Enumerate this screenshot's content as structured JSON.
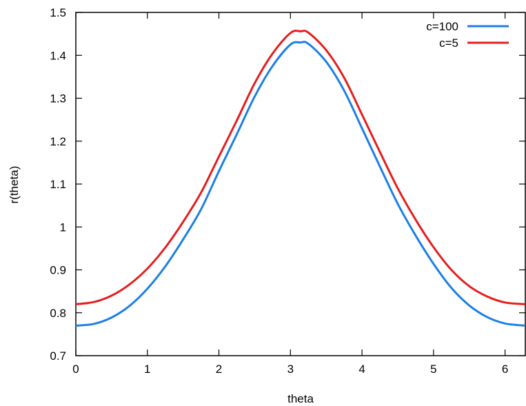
{
  "chart_data": {
    "type": "line",
    "xlabel": "theta",
    "ylabel": "r(theta)",
    "xlim": [
      0,
      6.2832
    ],
    "ylim": [
      0.7,
      1.5
    ],
    "x_ticks": [
      0,
      1,
      2,
      3,
      4,
      5,
      6
    ],
    "x_tick_labels": [
      "0",
      "1",
      "2",
      "3",
      "4",
      "5",
      "6"
    ],
    "y_ticks": [
      0.7,
      0.8,
      0.9,
      1.0,
      1.1,
      1.2,
      1.3,
      1.4,
      1.5
    ],
    "y_tick_labels": [
      "0.7",
      "0.8",
      "0.9",
      "1",
      "1.1",
      "1.2",
      "1.3",
      "1.4",
      "1.5"
    ],
    "grid": false,
    "legend_position": "top-right",
    "x": [
      0,
      0.25,
      0.5,
      0.75,
      1.0,
      1.25,
      1.5,
      1.75,
      2.0,
      2.25,
      2.5,
      2.75,
      3.0,
      3.1416,
      3.25,
      3.5,
      3.75,
      4.0,
      4.25,
      4.5,
      4.75,
      5.0,
      5.25,
      5.5,
      5.75,
      6.0,
      6.2832
    ],
    "series": [
      {
        "name": "c=100",
        "color": "#1c7ee6",
        "values": [
          0.77,
          0.774,
          0.789,
          0.816,
          0.856,
          0.908,
          0.971,
          1.041,
          1.13,
          1.216,
          1.304,
          1.375,
          1.425,
          1.43,
          1.427,
          1.385,
          1.318,
          1.23,
          1.141,
          1.054,
          0.98,
          0.914,
          0.858,
          0.817,
          0.79,
          0.775,
          0.77
        ]
      },
      {
        "name": "c=5",
        "color": "#e61c1c",
        "values": [
          0.82,
          0.825,
          0.84,
          0.866,
          0.903,
          0.952,
          1.012,
          1.08,
          1.164,
          1.248,
          1.335,
          1.404,
          1.452,
          1.456,
          1.453,
          1.412,
          1.348,
          1.262,
          1.175,
          1.09,
          1.017,
          0.953,
          0.9,
          0.862,
          0.838,
          0.824,
          0.82
        ]
      }
    ]
  }
}
